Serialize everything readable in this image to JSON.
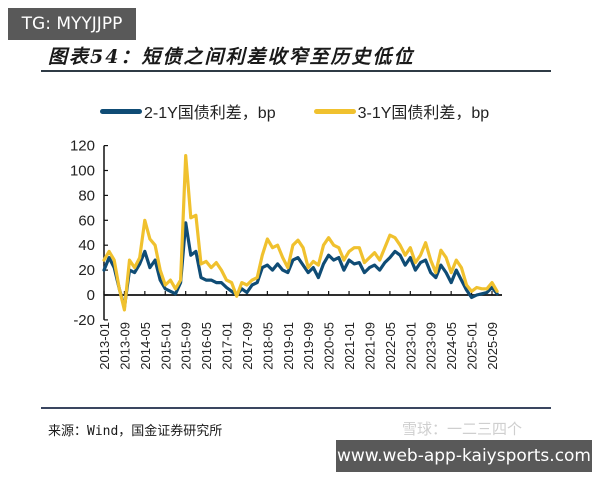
{
  "watermarks": {
    "top_left": "TG: MYYJJPP",
    "bottom_right_url": "www.web-app-kaiysports.com",
    "xueqiu": "雪球：一二三四个"
  },
  "figure": {
    "title": "图表54：短债之间利差收窄至历史低位",
    "source": "来源：Wind，国金证券研究所"
  },
  "colors": {
    "series_2_1": "#0f4c75",
    "series_3_1": "#f0c12e",
    "axis": "#111111",
    "rule": "#2f3b45"
  },
  "chart_data": {
    "type": "line",
    "title": "短债之间利差收窄至历史低位",
    "xlabel": "",
    "ylabel": "bp",
    "ylim": [
      -20,
      120
    ],
    "yticks": [
      -20,
      0,
      20,
      40,
      60,
      80,
      100,
      120
    ],
    "grid": false,
    "legend_position": "top",
    "xtick_labels": [
      "2013-01",
      "2013-09",
      "2014-05",
      "2015-01",
      "2015-09",
      "2016-05",
      "2017-01",
      "2017-09",
      "2018-05",
      "2019-01",
      "2019-09",
      "2020-05",
      "2021-01",
      "2021-09",
      "2022-05",
      "2023-01",
      "2023-09",
      "2024-05",
      "2025-01",
      "2025-09"
    ],
    "x": [
      "2013-01",
      "2013-03",
      "2013-05",
      "2013-07",
      "2013-09",
      "2013-11",
      "2014-01",
      "2014-03",
      "2014-05",
      "2014-07",
      "2014-09",
      "2014-11",
      "2015-01",
      "2015-03",
      "2015-05",
      "2015-07",
      "2015-09",
      "2015-11",
      "2016-01",
      "2016-03",
      "2016-05",
      "2016-07",
      "2016-09",
      "2016-11",
      "2017-01",
      "2017-03",
      "2017-05",
      "2017-07",
      "2017-09",
      "2017-11",
      "2018-01",
      "2018-03",
      "2018-05",
      "2018-07",
      "2018-09",
      "2018-11",
      "2019-01",
      "2019-03",
      "2019-05",
      "2019-07",
      "2019-09",
      "2019-11",
      "2020-01",
      "2020-03",
      "2020-05",
      "2020-07",
      "2020-09",
      "2020-11",
      "2021-01",
      "2021-03",
      "2021-05",
      "2021-07",
      "2021-09",
      "2021-11",
      "2022-01",
      "2022-03",
      "2022-05",
      "2022-07",
      "2022-09",
      "2022-11",
      "2023-01",
      "2023-03",
      "2023-05",
      "2023-07",
      "2023-09",
      "2023-11",
      "2024-01",
      "2024-03",
      "2024-05",
      "2024-07",
      "2024-09",
      "2024-11",
      "2025-01",
      "2025-03",
      "2025-05",
      "2025-07",
      "2025-09",
      "2025-11"
    ],
    "series": [
      {
        "name": "2-1Y国债利差，bp",
        "color": "#0f4c75",
        "values": [
          20,
          30,
          22,
          5,
          -10,
          20,
          18,
          25,
          35,
          22,
          28,
          12,
          5,
          3,
          1,
          10,
          58,
          32,
          35,
          14,
          12,
          12,
          10,
          10,
          6,
          3,
          0,
          5,
          2,
          8,
          10,
          22,
          24,
          20,
          25,
          20,
          18,
          28,
          30,
          24,
          18,
          22,
          14,
          25,
          32,
          28,
          30,
          20,
          28,
          25,
          26,
          18,
          22,
          24,
          20,
          26,
          30,
          35,
          32,
          24,
          30,
          20,
          26,
          28,
          18,
          14,
          24,
          18,
          10,
          20,
          12,
          4,
          -2,
          0,
          1,
          2,
          6,
          1
        ],
        "approx": true
      },
      {
        "name": "3-1Y国债利差，bp",
        "color": "#f0c12e",
        "values": [
          28,
          35,
          28,
          5,
          -12,
          28,
          22,
          30,
          60,
          45,
          40,
          20,
          8,
          12,
          5,
          12,
          112,
          62,
          64,
          25,
          27,
          22,
          26,
          20,
          12,
          10,
          -1,
          10,
          8,
          12,
          14,
          32,
          45,
          38,
          40,
          30,
          22,
          40,
          44,
          38,
          22,
          27,
          24,
          40,
          46,
          40,
          38,
          28,
          35,
          38,
          38,
          26,
          30,
          34,
          28,
          38,
          48,
          46,
          40,
          32,
          38,
          26,
          32,
          42,
          28,
          18,
          36,
          30,
          18,
          28,
          22,
          8,
          3,
          6,
          5,
          5,
          10,
          3
        ],
        "approx": true
      }
    ]
  },
  "legend": [
    {
      "label": "2-1Y国债利差，bp"
    },
    {
      "label": "3-1Y国债利差，bp"
    }
  ]
}
